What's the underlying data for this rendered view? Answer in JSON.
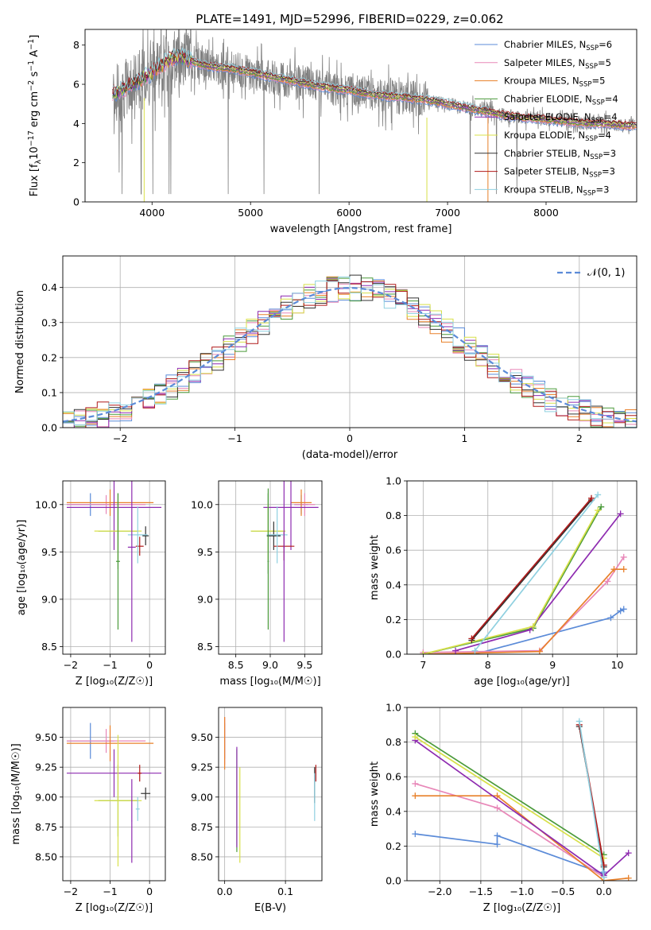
{
  "title": "PLATE=1491, MJD=52996, FIBERID=0229, z=0.062",
  "models": [
    {
      "name": "Chabrier MILES, N$_{SSP}$=6",
      "label": "Chabrier MILES, N",
      "sub": "SSP",
      "tail": "=6",
      "color": "#5b8bd8"
    },
    {
      "name": "Salpeter MILES, N$_{SSP}$=5",
      "label": "Salpeter MILES, N",
      "sub": "SSP",
      "tail": "=5",
      "color": "#e887b8"
    },
    {
      "name": "Kroupa MILES, N$_{SSP}$=5",
      "label": "Kroupa MILES, N",
      "sub": "SSP",
      "tail": "=5",
      "color": "#e8802a"
    },
    {
      "name": "Chabrier ELODIE, N$_{SSP}$=4",
      "label": "Chabrier ELODIE, N",
      "sub": "SSP",
      "tail": "=4",
      "color": "#4a9a3a"
    },
    {
      "name": "Salpeter ELODIE, N$_{SSP}$=4",
      "label": "Salpeter ELODIE, N",
      "sub": "SSP",
      "tail": "=4",
      "color": "#8e2bb0"
    },
    {
      "name": "Kroupa ELODIE, N$_{SSP}$=4",
      "label": "Kroupa ELODIE, N",
      "sub": "SSP",
      "tail": "=4",
      "color": "#d8e04a"
    },
    {
      "name": "Chabrier STELIB, N$_{SSP}$=3",
      "label": "Chabrier STELIB, N",
      "sub": "SSP",
      "tail": "=3",
      "color": "#333333"
    },
    {
      "name": "Salpeter STELIB, N$_{SSP}$=3",
      "label": "Salpeter STELIB, N",
      "sub": "SSP",
      "tail": "=3",
      "color": "#b01a1a"
    },
    {
      "name": "Kroupa STELIB, N$_{SSP}$=3",
      "label": "Kroupa STELIB, N",
      "sub": "SSP",
      "tail": "=3",
      "color": "#8fd0e0"
    }
  ],
  "chart_data": [
    {
      "id": "spectrum",
      "type": "line",
      "xlabel": "wavelength [Angstrom, rest frame]",
      "ylabel_main": "Flux [f",
      "ylabel_sub": "λ",
      "ylabel_rest": "10",
      "ylabel_sup": "−17",
      "ylabel_tail": " erg cm",
      "ylabel_sup2": "−2",
      "ylabel_tail2": " s",
      "ylabel_sup3": "−1",
      "ylabel_tail3": " A",
      "ylabel_sup4": "−1",
      "ylabel_end": "]",
      "xlim": [
        3320,
        8920
      ],
      "ylim": [
        0,
        8.8
      ],
      "xticks": [
        4000,
        5000,
        6000,
        7000,
        8000
      ],
      "yticks": [
        0,
        2,
        4,
        6,
        8
      ],
      "observed_color": "#808080",
      "continuum_x": [
        3600,
        3700,
        3800,
        3900,
        4000,
        4100,
        4200,
        4300,
        4400,
        4500,
        4600,
        4800,
        5000,
        5200,
        5400,
        5600,
        5800,
        6000,
        6200,
        6400,
        6600,
        6800,
        7000,
        7200,
        7400,
        7600,
        7800,
        8000,
        8200,
        8400,
        8600,
        8800
      ],
      "continuum_y": [
        5.5,
        5.7,
        6.0,
        6.3,
        6.6,
        7.0,
        7.3,
        7.4,
        7.2,
        7.0,
        6.9,
        6.8,
        6.6,
        6.4,
        6.2,
        6.0,
        5.8,
        5.7,
        5.5,
        5.4,
        5.3,
        5.2,
        5.0,
        4.8,
        4.6,
        4.4,
        4.3,
        4.2,
        4.1,
        4.0,
        4.0,
        3.9
      ]
    },
    {
      "id": "residuals",
      "type": "histogram",
      "xlabel": "(data-model)/error",
      "ylabel": "Normed distribution",
      "xlim": [
        -2.5,
        2.5
      ],
      "ylim": [
        0,
        0.49
      ],
      "xticks": [
        -2,
        -1,
        0,
        1,
        2
      ],
      "yticks": [
        0,
        0.1,
        0.2,
        0.3,
        0.4
      ],
      "legend": "𝒩(0, 1)",
      "legend_loc": "top-right",
      "gaussian_color": "#5b8bd8"
    },
    {
      "id": "age_vs_Z",
      "type": "scatter",
      "xlabel": "Z [log₁₀(Z/Z☉)]",
      "ylabel": "age [log₁₀(age/yr)]",
      "xlim": [
        -2.2,
        0.4
      ],
      "ylim": [
        8.42,
        10.25
      ],
      "xticks": [
        -2,
        -1,
        0
      ],
      "yticks": [
        8.5,
        9.0,
        9.5,
        10.0
      ],
      "points": [
        {
          "m": 0,
          "x": -1.5,
          "y": 10.0,
          "xe": 0.6,
          "ye": 0.12
        },
        {
          "m": 1,
          "x": -1.1,
          "y": 10.0,
          "xe": 1.0,
          "ye": 0.1
        },
        {
          "m": 2,
          "x": -1.0,
          "y": 10.02,
          "xe": 1.1,
          "ye": 0.14
        },
        {
          "m": 3,
          "x": -0.8,
          "y": 9.72,
          "xe": 0.5,
          "ye": 0.4
        },
        {
          "m": 4,
          "x": -0.9,
          "y": 9.97,
          "xe": 1.2,
          "ye": 0.45
        },
        {
          "m": 5,
          "x": -0.8,
          "y": 9.72,
          "xe": 0.6,
          "ye": 0.3
        },
        {
          "m": 6,
          "x": -0.1,
          "y": 9.67,
          "xe": 0.08,
          "ye": 0.1
        },
        {
          "m": 7,
          "x": -0.25,
          "y": 9.56,
          "xe": 0.1,
          "ye": 0.1
        },
        {
          "m": 8,
          "x": -0.3,
          "y": 9.68,
          "xe": 0.25,
          "ye": 0.3
        },
        {
          "m": 4,
          "x": -0.45,
          "y": 9.55,
          "xe": 0.1,
          "ye": 1.0
        },
        {
          "m": 3,
          "x": -0.8,
          "y": 9.4,
          "xe": 0.05,
          "ye": 0.72
        }
      ]
    },
    {
      "id": "age_vs_mass",
      "type": "scatter",
      "xlabel": "mass [log₁₀(M/M☉)]",
      "ylabel": "",
      "xlim": [
        8.25,
        9.75
      ],
      "ylim": [
        8.42,
        10.25
      ],
      "xticks": [
        8.5,
        9.0,
        9.5
      ],
      "yticks": [
        8.5,
        9.0,
        9.5,
        10.0
      ],
      "points": [
        {
          "m": 0,
          "x": 9.45,
          "y": 10.0,
          "xe": 0.1,
          "ye": 0.1
        },
        {
          "m": 1,
          "x": 9.5,
          "y": 10.0,
          "xe": 0.15,
          "ye": 0.12
        },
        {
          "m": 2,
          "x": 9.45,
          "y": 10.02,
          "xe": 0.15,
          "ye": 0.14
        },
        {
          "m": 3,
          "x": 8.97,
          "y": 9.72,
          "xe": 0.25,
          "ye": 0.45
        },
        {
          "m": 4,
          "x": 9.3,
          "y": 9.97,
          "xe": 0.4,
          "ye": 0.45
        },
        {
          "m": 5,
          "x": 8.97,
          "y": 9.72,
          "xe": 0.25,
          "ye": 0.3
        },
        {
          "m": 6,
          "x": 9.05,
          "y": 9.67,
          "xe": 0.1,
          "ye": 0.15
        },
        {
          "m": 7,
          "x": 9.2,
          "y": 9.56,
          "xe": 0.15,
          "ye": 0.15
        },
        {
          "m": 8,
          "x": 9.1,
          "y": 9.68,
          "xe": 0.15,
          "ye": 0.3
        },
        {
          "m": 4,
          "x": 9.2,
          "y": 9.55,
          "xe": 0.01,
          "ye": 1.0
        },
        {
          "m": 3,
          "x": 8.97,
          "y": 9.4,
          "xe": 0.01,
          "ye": 0.72
        }
      ]
    },
    {
      "id": "massweight_vs_age",
      "type": "line",
      "xlabel": "age [log₁₀(age/yr)]",
      "ylabel": "mass weight",
      "xlim": [
        6.75,
        10.3
      ],
      "ylim": [
        0,
        1.0
      ],
      "xticks": [
        7,
        8,
        9,
        10
      ],
      "yticks": [
        0,
        0.2,
        0.4,
        0.6,
        0.8,
        1.0
      ],
      "series": [
        {
          "m": 0,
          "x": [
            7.8,
            9.9,
            10.05,
            10.1
          ],
          "y": [
            0.0,
            0.21,
            0.25,
            0.26
          ]
        },
        {
          "m": 1,
          "x": [
            7.0,
            8.8,
            9.85,
            10.1
          ],
          "y": [
            0.01,
            0.02,
            0.42,
            0.56
          ]
        },
        {
          "m": 2,
          "x": [
            7.0,
            8.8,
            9.95,
            10.1
          ],
          "y": [
            0.0,
            0.015,
            0.49,
            0.49
          ]
        },
        {
          "m": 3,
          "x": [
            7.0,
            8.7,
            9.75
          ],
          "y": [
            0.0,
            0.15,
            0.85
          ]
        },
        {
          "m": 4,
          "x": [
            7.5,
            8.65,
            10.05
          ],
          "y": [
            0.02,
            0.14,
            0.81
          ]
        },
        {
          "m": 5,
          "x": [
            7.0,
            8.7,
            9.7
          ],
          "y": [
            0.0,
            0.16,
            0.83
          ]
        },
        {
          "m": 6,
          "x": [
            7.75,
            9.6
          ],
          "y": [
            0.08,
            0.89
          ]
        },
        {
          "m": 7,
          "x": [
            7.75,
            9.6
          ],
          "y": [
            0.09,
            0.9
          ]
        },
        {
          "m": 8,
          "x": [
            7.8,
            9.7
          ],
          "y": [
            0.02,
            0.92
          ]
        }
      ]
    },
    {
      "id": "mass_vs_Z",
      "type": "scatter",
      "xlabel": "Z [log₁₀(Z/Z☉)]",
      "ylabel": "mass [log₁₀(M/M☉)]",
      "xlim": [
        -2.2,
        0.4
      ],
      "ylim": [
        8.3,
        9.75
      ],
      "xticks": [
        -2,
        -1,
        0
      ],
      "yticks": [
        8.5,
        8.75,
        9.0,
        9.25,
        9.5
      ],
      "points": [
        {
          "m": 0,
          "x": -1.5,
          "y": 9.47,
          "xe": 0.6,
          "ye": 0.15
        },
        {
          "m": 1,
          "x": -1.1,
          "y": 9.47,
          "xe": 1.0,
          "ye": 0.1
        },
        {
          "m": 2,
          "x": -1.0,
          "y": 9.45,
          "xe": 1.1,
          "ye": 0.15
        },
        {
          "m": 3,
          "x": -0.8,
          "y": 8.97,
          "xe": 0.5,
          "ye": 0.3
        },
        {
          "m": 4,
          "x": -0.9,
          "y": 9.2,
          "xe": 1.2,
          "ye": 0.2
        },
        {
          "m": 5,
          "x": -0.8,
          "y": 8.97,
          "xe": 0.6,
          "ye": 0.55
        },
        {
          "m": 6,
          "x": -0.1,
          "y": 9.03,
          "xe": 0.12,
          "ye": 0.05
        },
        {
          "m": 7,
          "x": -0.25,
          "y": 9.2,
          "xe": 0.05,
          "ye": 0.07
        },
        {
          "m": 8,
          "x": -0.3,
          "y": 8.9,
          "xe": 0.05,
          "ye": 0.1
        },
        {
          "m": 4,
          "x": -0.45,
          "y": 8.8,
          "xe": 0.01,
          "ye": 0.35
        }
      ]
    },
    {
      "id": "mass_vs_EBV",
      "type": "scatter",
      "xlabel": "E(B-V)",
      "ylabel": "",
      "xlim": [
        -0.01,
        0.16
      ],
      "ylim": [
        8.3,
        9.75
      ],
      "xticks": [
        0.0,
        0.1
      ],
      "yticks": [
        8.5,
        8.75,
        9.0,
        9.25,
        9.5
      ],
      "points": [
        {
          "m": 0,
          "x": 0.0,
          "y": 9.47,
          "ye": 0.15
        },
        {
          "m": 1,
          "x": 0.0,
          "y": 9.47,
          "ye": 0.2
        },
        {
          "m": 2,
          "x": 0.0,
          "y": 9.45,
          "ye": 0.22
        },
        {
          "m": 3,
          "x": 0.02,
          "y": 8.97,
          "ye": 0.43
        },
        {
          "m": 4,
          "x": 0.02,
          "y": 9.0,
          "ye": 0.42
        },
        {
          "m": 5,
          "x": 0.025,
          "y": 8.85,
          "ye": 0.4
        },
        {
          "m": 6,
          "x": 0.148,
          "y": 9.1,
          "ye": 0.15
        },
        {
          "m": 7,
          "x": 0.15,
          "y": 9.2,
          "ye": 0.07
        },
        {
          "m": 8,
          "x": 0.148,
          "y": 9.0,
          "ye": 0.2
        }
      ]
    },
    {
      "id": "massweight_vs_Z",
      "type": "line",
      "xlabel": "Z [log₁₀(Z/Z☉)]",
      "ylabel": "mass weight",
      "xlim": [
        -2.4,
        0.4
      ],
      "ylim": [
        0,
        1.0
      ],
      "xticks": [
        -2.0,
        -1.5,
        -1.0,
        -0.5,
        0.0
      ],
      "yticks": [
        0,
        0.2,
        0.4,
        0.6,
        0.8,
        1.0
      ],
      "series": [
        {
          "m": 0,
          "x": [
            -2.3,
            -1.3,
            -1.3,
            0.0,
            0.0
          ],
          "y": [
            0.27,
            0.21,
            0.26,
            0.04,
            0.05
          ]
        },
        {
          "m": 1,
          "x": [
            -2.3,
            -1.3,
            0.0
          ],
          "y": [
            0.56,
            0.42,
            0.02
          ]
        },
        {
          "m": 2,
          "x": [
            -2.3,
            -1.3,
            0.0,
            0.3
          ],
          "y": [
            0.49,
            0.49,
            0.0,
            0.015
          ]
        },
        {
          "m": 3,
          "x": [
            -2.3,
            0.0
          ],
          "y": [
            0.85,
            0.15
          ]
        },
        {
          "m": 4,
          "x": [
            -2.3,
            0.0,
            0.3
          ],
          "y": [
            0.81,
            0.03,
            0.16
          ]
        },
        {
          "m": 5,
          "x": [
            -2.3,
            0.0
          ],
          "y": [
            0.83,
            0.13
          ]
        },
        {
          "m": 6,
          "x": [
            -0.3,
            0.0
          ],
          "y": [
            0.89,
            0.08
          ]
        },
        {
          "m": 7,
          "x": [
            -0.3,
            0.0
          ],
          "y": [
            0.9,
            0.09
          ]
        },
        {
          "m": 8,
          "x": [
            -0.3,
            0.0
          ],
          "y": [
            0.92,
            0.02
          ]
        }
      ]
    }
  ]
}
